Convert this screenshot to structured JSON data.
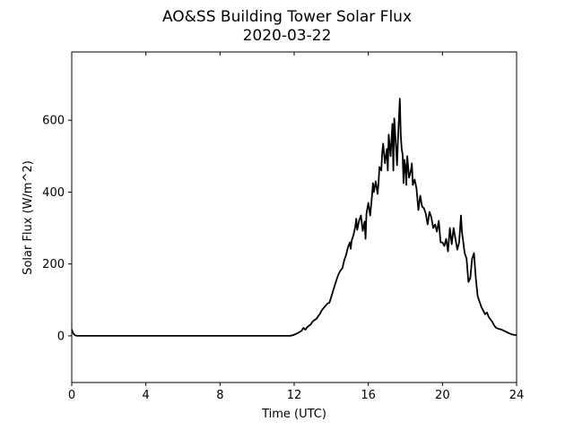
{
  "chart_data": {
    "type": "line",
    "title": "AO&SS Building Tower Solar Flux",
    "subtitle": "2020-03-22",
    "xlabel": "Time (UTC)",
    "ylabel": "Solar Flux (W/m^2)",
    "xlim": [
      0,
      24
    ],
    "ylim": [
      -130,
      790
    ],
    "xticks": [
      0,
      4,
      8,
      12,
      16,
      20,
      24
    ],
    "yticks": [
      0,
      200,
      400,
      600
    ],
    "grid": false,
    "line_color": "#000000",
    "series": [
      {
        "x": [
          0,
          0.05,
          0.12,
          0.2,
          0.3,
          1,
          4,
          8,
          11.5,
          11.8,
          12,
          12.2,
          12.4,
          12.5,
          12.6,
          12.7,
          12.8,
          12.9,
          13.0,
          13.1,
          13.2,
          13.3,
          13.4,
          13.5,
          13.6,
          13.7,
          13.8,
          13.9,
          14.0,
          14.1,
          14.2,
          14.3,
          14.4,
          14.5,
          14.6,
          14.7,
          14.8,
          14.9,
          15.0,
          15.05,
          15.1,
          15.2,
          15.3,
          15.35,
          15.4,
          15.5,
          15.6,
          15.7,
          15.8,
          15.85,
          15.9,
          16.0,
          16.1,
          16.2,
          16.25,
          16.3,
          16.4,
          16.5,
          16.55,
          16.6,
          16.7,
          16.75,
          16.8,
          16.9,
          17.0,
          17.05,
          17.1,
          17.2,
          17.3,
          17.35,
          17.4,
          17.5,
          17.55,
          17.6,
          17.7,
          17.75,
          17.8,
          17.85,
          17.9,
          17.95,
          18.0,
          18.05,
          18.1,
          18.15,
          18.2,
          18.3,
          18.35,
          18.4,
          18.5,
          18.6,
          18.7,
          18.8,
          18.9,
          19.0,
          19.1,
          19.2,
          19.3,
          19.4,
          19.5,
          19.6,
          19.7,
          19.8,
          19.9,
          20.0,
          20.1,
          20.2,
          20.3,
          20.4,
          20.5,
          20.6,
          20.7,
          20.8,
          20.9,
          21.0,
          21.05,
          21.1,
          21.2,
          21.3,
          21.4,
          21.5,
          21.6,
          21.7,
          21.8,
          21.9,
          22.0,
          22.1,
          22.2,
          22.3,
          22.4,
          22.5,
          22.6,
          22.7,
          22.8,
          22.9,
          23.0,
          23.2,
          23.4,
          23.6,
          23.8,
          24.0
        ],
        "y": [
          18,
          10,
          4,
          1,
          0,
          0,
          0,
          0,
          0,
          0,
          3,
          8,
          14,
          22,
          17,
          24,
          28,
          32,
          40,
          44,
          47,
          55,
          62,
          72,
          78,
          84,
          90,
          92,
          108,
          125,
          142,
          158,
          172,
          182,
          188,
          210,
          225,
          246,
          260,
          242,
          265,
          280,
          305,
          326,
          295,
          320,
          335,
          292,
          318,
          270,
          340,
          370,
          335,
          390,
          425,
          400,
          430,
          395,
          425,
          470,
          460,
          510,
          535,
          480,
          520,
          460,
          560,
          500,
          590,
          460,
          605,
          520,
          475,
          545,
          660,
          560,
          520,
          505,
          425,
          490,
          470,
          420,
          500,
          470,
          440,
          460,
          480,
          420,
          435,
          410,
          350,
          390,
          360,
          355,
          340,
          310,
          345,
          330,
          300,
          310,
          290,
          320,
          260,
          260,
          250,
          270,
          235,
          300,
          255,
          300,
          270,
          240,
          260,
          335,
          290,
          270,
          230,
          215,
          150,
          160,
          215,
          230,
          160,
          110,
          95,
          80,
          70,
          60,
          65,
          52,
          45,
          38,
          28,
          22,
          20,
          17,
          12,
          7,
          3,
          2
        ]
      }
    ]
  }
}
